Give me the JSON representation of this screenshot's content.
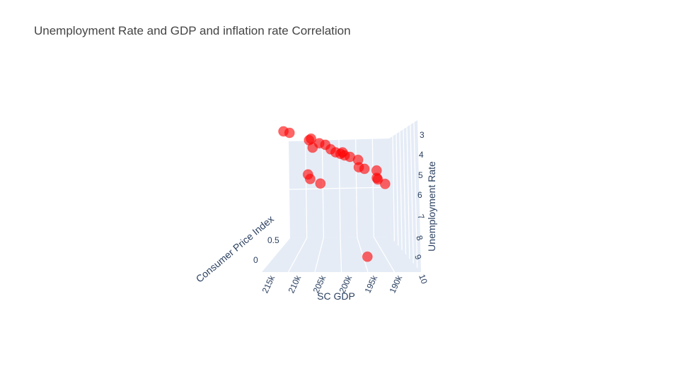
{
  "chart_data": {
    "type": "scatter3d",
    "title": "Unemployment Rate and GDP and inflation rate Correlation",
    "axes": {
      "x": {
        "label": "SC GDP",
        "ticks": [
          "215k",
          "210k",
          "205k",
          "200k",
          "195k",
          "190k"
        ]
      },
      "y": {
        "label": "Consumer Price Index",
        "ticks": [
          "0",
          "0.5"
        ]
      },
      "z": {
        "label": "Unemployment Rate",
        "ticks": [
          "3",
          "4",
          "5",
          "6",
          "7",
          "8",
          "9",
          "10"
        ],
        "reversed": true
      }
    },
    "marker_color": "#ff0000",
    "marker_opacity": 0.6,
    "points": [
      {
        "gdp": 217000,
        "cpi": 1.0,
        "unemp": 2.9
      },
      {
        "gdp": 215500,
        "cpi": 1.0,
        "unemp": 3.0
      },
      {
        "gdp": 210500,
        "cpi": 0.9,
        "unemp": 3.3
      },
      {
        "gdp": 210000,
        "cpi": 0.9,
        "unemp": 3.2
      },
      {
        "gdp": 209500,
        "cpi": 0.8,
        "unemp": 3.6
      },
      {
        "gdp": 208000,
        "cpi": 0.9,
        "unemp": 3.5
      },
      {
        "gdp": 206500,
        "cpi": 0.9,
        "unemp": 3.6
      },
      {
        "gdp": 205200,
        "cpi": 0.9,
        "unemp": 3.9
      },
      {
        "gdp": 204000,
        "cpi": 0.9,
        "unemp": 4.1
      },
      {
        "gdp": 202800,
        "cpi": 0.9,
        "unemp": 4.2
      },
      {
        "gdp": 202300,
        "cpi": 0.9,
        "unemp": 4.1
      },
      {
        "gdp": 201800,
        "cpi": 0.9,
        "unemp": 4.3
      },
      {
        "gdp": 200500,
        "cpi": 0.9,
        "unemp": 4.4
      },
      {
        "gdp": 198500,
        "cpi": 0.9,
        "unemp": 4.6
      },
      {
        "gdp": 198200,
        "cpi": 0.8,
        "unemp": 4.9
      },
      {
        "gdp": 196800,
        "cpi": 0.8,
        "unemp": 5.0
      },
      {
        "gdp": 194000,
        "cpi": 0.9,
        "unemp": 5.3
      },
      {
        "gdp": 193800,
        "cpi": 0.8,
        "unemp": 5.6
      },
      {
        "gdp": 193600,
        "cpi": 0.8,
        "unemp": 5.7
      },
      {
        "gdp": 191800,
        "cpi": 0.8,
        "unemp": 6.0
      },
      {
        "gdp": 210500,
        "cpi": 0.6,
        "unemp": 5.0
      },
      {
        "gdp": 210000,
        "cpi": 0.6,
        "unemp": 5.3
      },
      {
        "gdp": 207500,
        "cpi": 0.6,
        "unemp": 5.6
      },
      {
        "gdp": 195500,
        "cpi": 0.1,
        "unemp": 9.5
      }
    ]
  }
}
